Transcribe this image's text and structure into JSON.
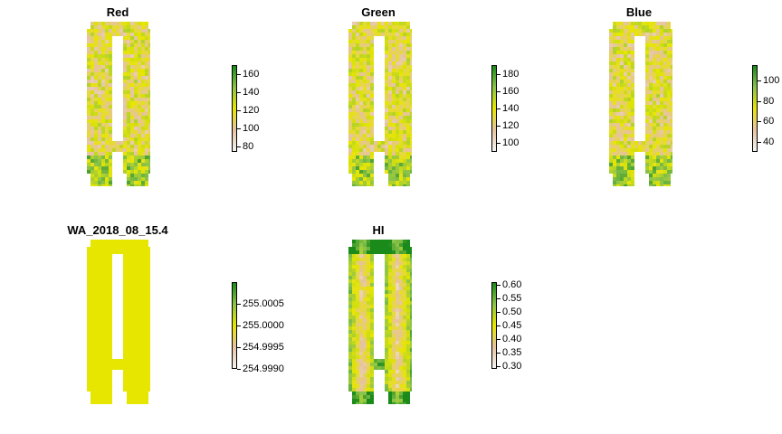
{
  "chart_data": [
    {
      "type": "heatmap",
      "title": "Red",
      "palette": [
        "#f2f2f2",
        "#e6c39f",
        "#e6e600",
        "#8bc34a",
        "#1a8a1a"
      ],
      "value_range": [
        74,
        170
      ],
      "legend_ticks": [
        80,
        100,
        120,
        140,
        160
      ]
    },
    {
      "type": "heatmap",
      "title": "Green",
      "palette": [
        "#f2f2f2",
        "#e6c39f",
        "#e6e600",
        "#8bc34a",
        "#1a8a1a"
      ],
      "value_range": [
        90,
        190
      ],
      "legend_ticks": [
        100,
        120,
        140,
        160,
        180
      ]
    },
    {
      "type": "heatmap",
      "title": "Blue",
      "palette": [
        "#f2f2f2",
        "#e6c39f",
        "#e6e600",
        "#8bc34a",
        "#1a8a1a"
      ],
      "value_range": [
        30,
        115
      ],
      "legend_ticks": [
        40,
        60,
        80,
        100
      ]
    },
    {
      "type": "heatmap",
      "title": "WA_2018_08_15.4",
      "palette": [
        "#f2f2f2",
        "#e6c39f",
        "#e6e600",
        "#8bc34a",
        "#1a8a1a"
      ],
      "value_range": [
        254.999,
        255.001
      ],
      "legend_ticks": [
        "254.9990",
        "254.9995",
        "255.0000",
        "255.0005"
      ]
    },
    {
      "type": "heatmap",
      "title": "HI",
      "palette": [
        "#f2f2f2",
        "#e6c39f",
        "#e6e600",
        "#8bc34a",
        "#1a8a1a"
      ],
      "value_range": [
        0.29,
        0.61
      ],
      "legend_ticks": [
        "0.30",
        "0.35",
        "0.40",
        "0.45",
        "0.50",
        "0.55",
        "0.60"
      ]
    }
  ]
}
